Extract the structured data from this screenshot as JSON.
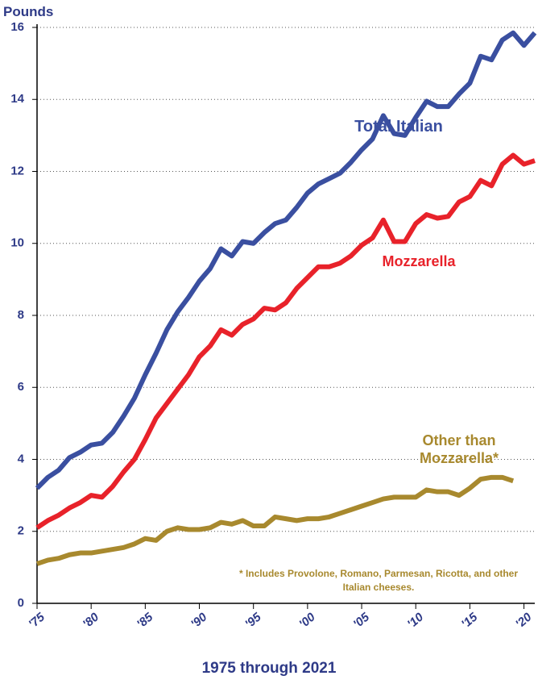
{
  "chart_data": {
    "type": "line",
    "y_label": "Pounds",
    "x_label": "1975 through 2021",
    "footnote": "* Includes Provolone, Romano, Parmesan, Ricotta, and other Italian cheeses.",
    "x": [
      1975,
      1976,
      1977,
      1978,
      1979,
      1980,
      1981,
      1982,
      1983,
      1984,
      1985,
      1986,
      1987,
      1988,
      1989,
      1990,
      1991,
      1992,
      1993,
      1994,
      1995,
      1996,
      1997,
      1998,
      1999,
      2000,
      2001,
      2002,
      2003,
      2004,
      2005,
      2006,
      2007,
      2008,
      2009,
      2010,
      2011,
      2012,
      2013,
      2014,
      2015,
      2016,
      2017,
      2018,
      2019,
      2020,
      2021
    ],
    "series": [
      {
        "name": "Total Italian",
        "color": "#3a4fa0",
        "values": [
          3.2,
          3.5,
          3.7,
          4.05,
          4.2,
          4.4,
          4.45,
          4.75,
          5.2,
          5.7,
          6.35,
          6.95,
          7.6,
          8.1,
          8.5,
          8.95,
          9.3,
          9.85,
          9.65,
          10.05,
          10.0,
          10.3,
          10.55,
          10.65,
          11.0,
          11.4,
          11.65,
          11.8,
          11.95,
          12.25,
          12.6,
          12.9,
          13.55,
          13.05,
          13.0,
          13.5,
          13.95,
          13.8,
          13.8,
          14.15,
          14.45,
          15.2,
          15.1,
          15.65,
          15.85,
          15.5,
          15.85
        ]
      },
      {
        "name": "Mozzarella",
        "color": "#e8222a",
        "values": [
          2.1,
          2.3,
          2.45,
          2.65,
          2.8,
          3.0,
          2.95,
          3.25,
          3.65,
          4.0,
          4.55,
          5.15,
          5.55,
          5.95,
          6.35,
          6.85,
          7.15,
          7.6,
          7.45,
          7.75,
          7.9,
          8.2,
          8.15,
          8.35,
          8.75,
          9.05,
          9.35,
          9.35,
          9.45,
          9.65,
          9.95,
          10.15,
          10.65,
          10.05,
          10.05,
          10.55,
          10.8,
          10.7,
          10.75,
          11.15,
          11.3,
          11.75,
          11.6,
          12.2,
          12.45,
          12.2,
          12.3
        ]
      },
      {
        "name": "Other than Mozzarella*",
        "color": "#a8892e",
        "values": [
          1.1,
          1.2,
          1.25,
          1.35,
          1.4,
          1.4,
          1.45,
          1.5,
          1.55,
          1.65,
          1.8,
          1.75,
          2.0,
          2.1,
          2.05,
          2.05,
          2.1,
          2.25,
          2.2,
          2.3,
          2.15,
          2.15,
          2.4,
          2.35,
          2.3,
          2.35,
          2.35,
          2.4,
          2.5,
          2.6,
          2.7,
          2.8,
          2.9,
          2.95,
          2.95,
          2.95,
          3.15,
          3.1,
          3.1,
          3.0,
          3.2,
          3.45,
          3.5,
          3.5,
          3.4,
          null,
          null
        ]
      }
    ],
    "xlim": [
      1975,
      2021
    ],
    "xticks": [
      {
        "value": 1975,
        "label": "'75"
      },
      {
        "value": 1980,
        "label": "'80"
      },
      {
        "value": 1985,
        "label": "'85"
      },
      {
        "value": 1990,
        "label": "'90"
      },
      {
        "value": 1995,
        "label": "'95"
      },
      {
        "value": 2000,
        "label": "'00"
      },
      {
        "value": 2005,
        "label": "'05"
      },
      {
        "value": 2010,
        "label": "'10"
      },
      {
        "value": 2015,
        "label": "'15"
      },
      {
        "value": 2020,
        "label": "'20"
      }
    ],
    "ylim": [
      0,
      16
    ],
    "yticks": [
      0,
      2,
      4,
      6,
      8,
      10,
      12,
      14,
      16
    ],
    "grid": true
  }
}
